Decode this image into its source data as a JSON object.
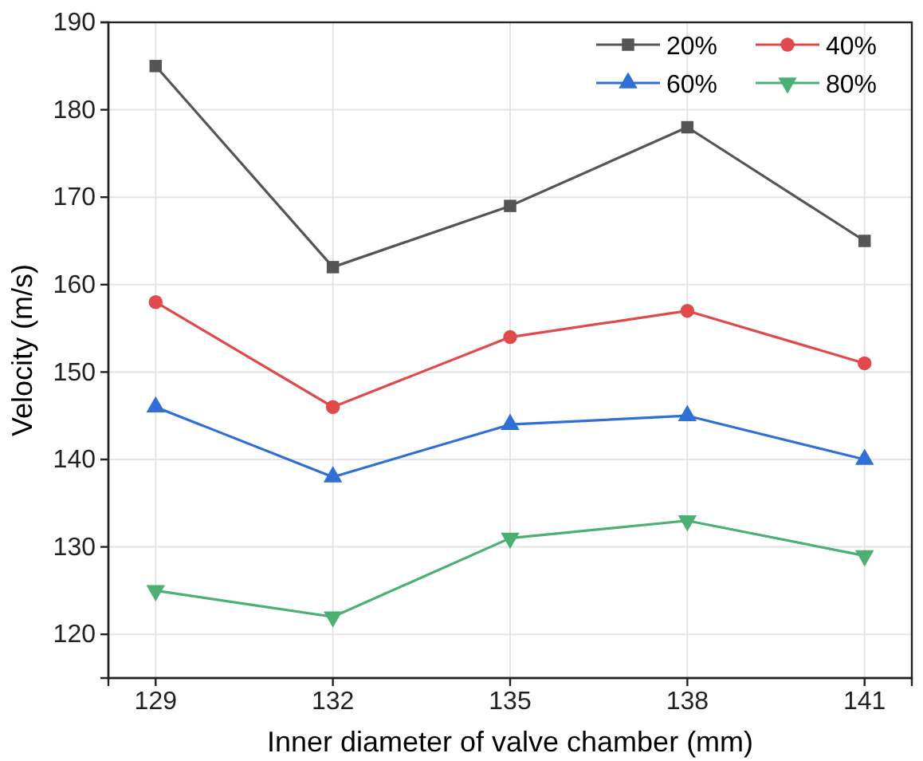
{
  "chart_data": {
    "type": "line",
    "xlabel": "Inner diameter of valve chamber (mm)",
    "ylabel": "Velocity (m/s)",
    "x": [
      129,
      132,
      135,
      138,
      141
    ],
    "xlim": [
      128.2,
      141.8
    ],
    "xticks": [
      129,
      132,
      135,
      138,
      141
    ],
    "ylim": [
      115,
      190
    ],
    "yticks": [
      120,
      130,
      140,
      150,
      160,
      170,
      180,
      190
    ],
    "grid": true,
    "legend": "top right",
    "series": [
      {
        "name": "20%",
        "color": "#555555",
        "marker": "square",
        "values": [
          185,
          162,
          169,
          178,
          165
        ]
      },
      {
        "name": "40%",
        "color": "#e04a4a",
        "marker": "circle",
        "values": [
          158,
          146,
          154,
          157,
          151
        ]
      },
      {
        "name": "60%",
        "color": "#2f6fd6",
        "marker": "triangle",
        "values": [
          146,
          138,
          144,
          145,
          140
        ]
      },
      {
        "name": "80%",
        "color": "#4caf73",
        "marker": "triangle-down",
        "values": [
          125,
          122,
          131,
          133,
          129
        ]
      }
    ]
  }
}
